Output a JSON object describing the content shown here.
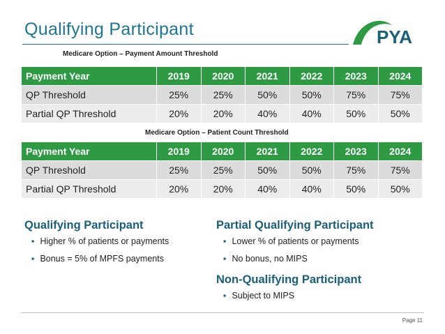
{
  "title": "Qualifying Participant",
  "logo": "PYA",
  "tables": [
    {
      "caption": "Medicare Option – Payment Amount Threshold",
      "header": [
        "Payment Year",
        "2019",
        "2020",
        "2021",
        "2022",
        "2023",
        "2024"
      ],
      "rows": [
        [
          "QP Threshold",
          "25%",
          "25%",
          "50%",
          "50%",
          "75%",
          "75%"
        ],
        [
          "Partial QP Threshold",
          "20%",
          "20%",
          "40%",
          "40%",
          "50%",
          "50%"
        ]
      ]
    },
    {
      "caption": "Medicare Option – Patient Count Threshold",
      "header": [
        "Payment Year",
        "2019",
        "2020",
        "2021",
        "2022",
        "2023",
        "2024"
      ],
      "rows": [
        [
          "QP Threshold",
          "25%",
          "25%",
          "50%",
          "50%",
          "75%",
          "75%"
        ],
        [
          "Partial QP Threshold",
          "20%",
          "20%",
          "40%",
          "40%",
          "50%",
          "50%"
        ]
      ]
    }
  ],
  "sections": [
    {
      "heading": "Qualifying Participant",
      "bullets": [
        "Higher % of patients or payments",
        "Bonus = 5% of MPFS payments"
      ]
    },
    {
      "heading": "Partial Qualifying Participant",
      "bullets": [
        "Lower % of patients or payments",
        "No bonus, no MIPS"
      ]
    },
    {
      "heading": "Non-Qualifying Participant",
      "bullets": [
        "Subject to MIPS"
      ]
    }
  ],
  "page": "Page 11"
}
